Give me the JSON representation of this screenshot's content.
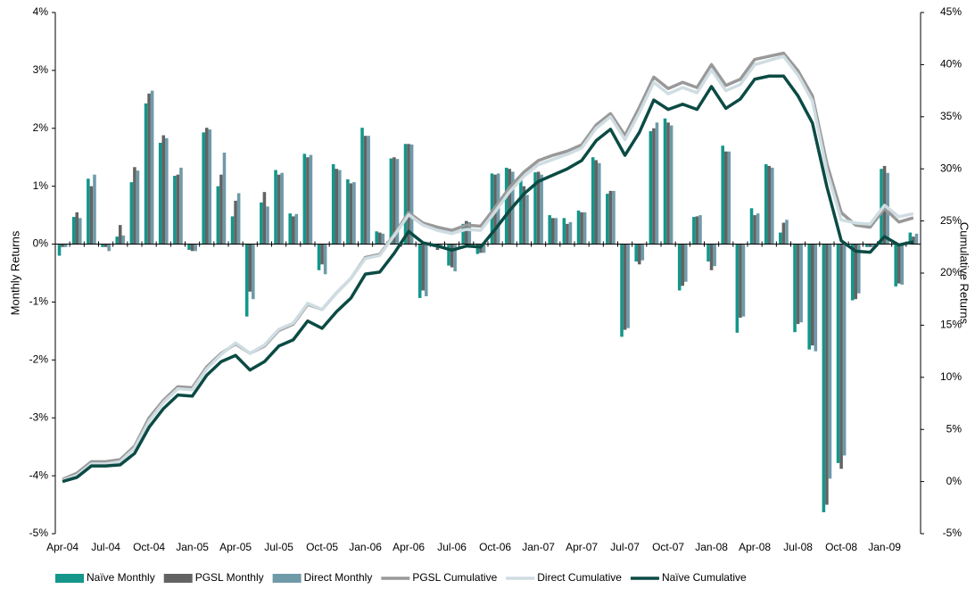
{
  "chart_data": {
    "type": "bar",
    "y_axis_label": "Monthly Returns",
    "y2_axis_label": "Cumulative Returns",
    "categories": [
      "Apr-04",
      null,
      null,
      "Jul-04",
      null,
      null,
      "Oct-04",
      null,
      null,
      "Jan-05",
      null,
      null,
      "Apr-05",
      null,
      null,
      "Jul-05",
      null,
      null,
      "Oct-05",
      null,
      null,
      "Jan-06",
      null,
      null,
      "Apr-06",
      null,
      null,
      "Jul-06",
      null,
      null,
      "Oct-06",
      null,
      null,
      "Jan-07",
      null,
      null,
      "Apr-07",
      null,
      null,
      "Jul-07",
      null,
      null,
      "Oct-07",
      null,
      null,
      "Jan-08",
      null,
      null,
      "Apr-08",
      null,
      null,
      "Jul-08",
      null,
      null,
      "Oct-08",
      null,
      null,
      "Jan-09",
      null,
      null
    ],
    "ylim": [
      -5,
      4
    ],
    "yticks": [
      {
        "value": -5,
        "label": "-5%"
      },
      {
        "value": -4,
        "label": "-4%"
      },
      {
        "value": -3,
        "label": "-3%"
      },
      {
        "value": -2,
        "label": "-2%"
      },
      {
        "value": -1,
        "label": "-1%"
      },
      {
        "value": 0,
        "label": "0%"
      },
      {
        "value": 1,
        "label": "1%"
      },
      {
        "value": 2,
        "label": "2%"
      },
      {
        "value": 3,
        "label": "3%"
      },
      {
        "value": 4,
        "label": "4%"
      }
    ],
    "y2lim": [
      -5,
      45
    ],
    "y2ticks": [
      {
        "value": -5,
        "label": "-5%"
      },
      {
        "value": 0,
        "label": "0%"
      },
      {
        "value": 5,
        "label": "5%"
      },
      {
        "value": 10,
        "label": "10%"
      },
      {
        "value": 15,
        "label": "15%"
      },
      {
        "value": 20,
        "label": "20%"
      },
      {
        "value": 25,
        "label": "25%"
      },
      {
        "value": 30,
        "label": "30%"
      },
      {
        "value": 35,
        "label": "35%"
      },
      {
        "value": 40,
        "label": "40%"
      },
      {
        "value": 45,
        "label": "45%"
      }
    ],
    "series": [
      {
        "name": "Naïve Monthly",
        "type": "bar",
        "color": "#14968a",
        "values": [
          -0.2,
          0.47,
          1.13,
          -0.05,
          0.13,
          1.07,
          2.43,
          1.75,
          1.18,
          -0.1,
          1.93,
          1.0,
          0.48,
          -1.25,
          0.72,
          1.28,
          0.53,
          1.56,
          -0.45,
          1.38,
          1.12,
          2.01,
          0.22,
          1.48,
          1.73,
          -0.93,
          -0.05,
          -0.37,
          0.35,
          -0.17,
          1.22,
          1.32,
          1.18,
          1.24,
          0.5,
          0.45,
          0.58,
          1.5,
          0.87,
          -1.6,
          -0.3,
          1.95,
          2.17,
          -0.8,
          0.47,
          -0.3,
          1.7,
          -1.53,
          0.62,
          1.38,
          0.2,
          -1.52,
          -1.82,
          -4.63,
          -3.78,
          -0.97,
          -0.05,
          1.3,
          -0.73,
          0.2
        ]
      },
      {
        "name": "PGSL Monthly",
        "type": "bar",
        "color": "#636363",
        "values": [
          -0.05,
          0.55,
          1.0,
          -0.05,
          0.33,
          1.33,
          2.6,
          1.88,
          1.2,
          -0.12,
          2.01,
          1.2,
          0.75,
          -0.82,
          0.9,
          1.2,
          0.48,
          1.5,
          -0.35,
          1.3,
          1.05,
          1.87,
          0.2,
          1.5,
          1.73,
          -0.8,
          -0.1,
          -0.4,
          0.4,
          -0.15,
          1.2,
          1.3,
          1.0,
          1.25,
          0.45,
          0.35,
          0.55,
          1.45,
          0.92,
          -1.48,
          -0.35,
          2.0,
          2.1,
          -0.72,
          0.48,
          -0.45,
          1.6,
          -1.27,
          0.5,
          1.35,
          0.37,
          -1.38,
          -1.75,
          -4.5,
          -3.88,
          -0.95,
          -0.05,
          1.35,
          -0.68,
          0.13
        ]
      },
      {
        "name": "Direct Monthly",
        "type": "bar",
        "color": "#6f9aa8",
        "values": [
          -0.05,
          0.45,
          1.2,
          -0.12,
          0.15,
          1.27,
          2.65,
          1.83,
          1.32,
          -0.12,
          1.98,
          1.58,
          0.88,
          -0.95,
          0.65,
          1.23,
          0.52,
          1.54,
          -0.52,
          1.28,
          1.07,
          1.87,
          0.18,
          1.47,
          1.72,
          -0.9,
          -0.05,
          -0.47,
          0.38,
          -0.15,
          1.22,
          1.25,
          0.85,
          1.2,
          0.45,
          0.38,
          0.55,
          1.4,
          0.92,
          -1.45,
          -0.28,
          2.1,
          2.05,
          -0.65,
          0.5,
          -0.38,
          1.6,
          -1.25,
          0.53,
          1.32,
          0.42,
          -1.35,
          -1.85,
          -4.05,
          -3.65,
          -0.85,
          -0.05,
          1.23,
          -0.7,
          0.18
        ]
      },
      {
        "name": "PGSL Cumulative",
        "type": "line",
        "axis": "y2",
        "color": "#999999",
        "values": [
          0.2,
          0.8,
          1.9,
          1.9,
          2.1,
          3.4,
          6.1,
          7.8,
          9.1,
          9.0,
          11.0,
          12.3,
          13.2,
          12.3,
          13.0,
          14.5,
          15.1,
          17.0,
          16.5,
          18.1,
          19.5,
          21.5,
          21.8,
          23.7,
          25.8,
          24.8,
          24.4,
          24.1,
          24.6,
          24.5,
          26.3,
          28.2,
          29.7,
          30.8,
          31.3,
          31.7,
          32.3,
          34.2,
          35.3,
          33.2,
          35.9,
          38.8,
          37.7,
          38.3,
          37.8,
          40.0,
          38.0,
          38.6,
          40.5,
          40.8,
          41.1,
          39.4,
          37.0,
          30.5,
          25.8,
          24.6,
          24.4,
          26.2,
          24.9,
          25.3
        ]
      },
      {
        "name": "Direct Cumulative",
        "type": "line",
        "axis": "y2",
        "color": "#cfdde2",
        "values": [
          0.1,
          0.6,
          1.7,
          1.7,
          1.9,
          3.2,
          5.8,
          7.6,
          8.9,
          8.8,
          10.8,
          12.2,
          13.3,
          12.3,
          13.1,
          14.6,
          15.2,
          17.1,
          16.5,
          18.1,
          19.5,
          21.4,
          21.7,
          23.6,
          25.6,
          24.6,
          24.1,
          23.8,
          24.2,
          24.1,
          25.9,
          27.8,
          29.3,
          30.4,
          30.9,
          31.4,
          32.0,
          33.9,
          35.0,
          32.8,
          35.4,
          38.3,
          37.2,
          37.8,
          37.3,
          39.5,
          37.5,
          38.1,
          40.0,
          40.4,
          40.8,
          39.0,
          36.5,
          29.8,
          25.1,
          24.8,
          24.7,
          26.5,
          25.4,
          25.7
        ]
      },
      {
        "name": "Naïve Cumulative",
        "type": "line",
        "axis": "y2",
        "color": "#0b4b44",
        "values": [
          0.0,
          0.4,
          1.5,
          1.5,
          1.6,
          2.7,
          5.2,
          7.0,
          8.3,
          8.2,
          10.2,
          11.5,
          12.1,
          10.7,
          11.5,
          13.0,
          13.6,
          15.4,
          14.7,
          16.3,
          17.6,
          19.9,
          20.1,
          21.9,
          24.0,
          22.9,
          22.6,
          22.2,
          22.6,
          22.5,
          24.2,
          26.0,
          27.6,
          28.8,
          29.4,
          30.0,
          30.8,
          32.7,
          33.8,
          31.3,
          33.5,
          36.6,
          35.7,
          36.2,
          35.7,
          37.9,
          35.8,
          36.7,
          38.6,
          38.9,
          38.9,
          37.0,
          34.4,
          28.3,
          23.1,
          22.1,
          22.0,
          23.5,
          22.7,
          23.0
        ]
      }
    ]
  }
}
